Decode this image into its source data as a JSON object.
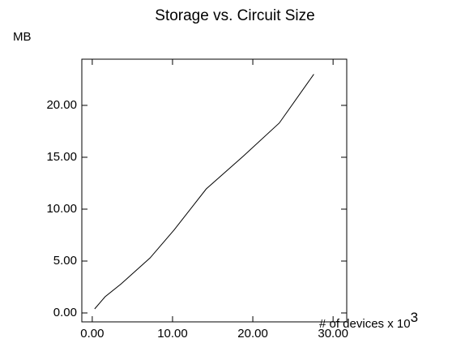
{
  "chart_data": {
    "type": "line",
    "title": "Storage vs. Circuit Size",
    "y_label": "MB",
    "x_label": "# of devices x 10",
    "x_label_exponent": "3",
    "x": [
      0.3,
      1.6,
      3.6,
      7.2,
      10.2,
      14.2,
      18.8,
      23.3,
      27.6
    ],
    "series": [
      {
        "color": "#000000",
        "values": [
          0.39,
          1.56,
          2.8,
          5.3,
          8.0,
          11.95,
          15.1,
          18.3,
          23.0
        ]
      }
    ],
    "xlim": [
      -1.3,
      31.7
    ],
    "ylim": [
      -0.86,
      24.45
    ],
    "xticks": [
      {
        "value": 0,
        "label": "0.00"
      },
      {
        "value": 10,
        "label": "10.00"
      },
      {
        "value": 20,
        "label": "20.00"
      },
      {
        "value": 30,
        "label": "30.00"
      }
    ],
    "yticks": [
      {
        "value": 0,
        "label": "0.00"
      },
      {
        "value": 5,
        "label": "5.00"
      },
      {
        "value": 10,
        "label": "10.00"
      },
      {
        "value": 15,
        "label": "15.00"
      },
      {
        "value": 20,
        "label": "20.00"
      }
    ]
  }
}
